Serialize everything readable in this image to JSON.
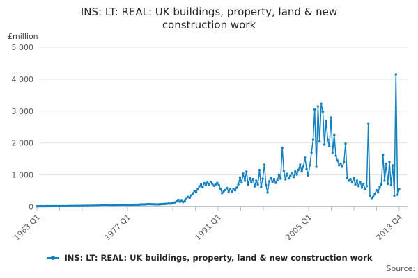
{
  "title": {
    "text": "INS: LT: REAL: UK buildings, property, land & new construction work"
  },
  "y_axis": {
    "unit": "£million",
    "ticks": [
      {
        "v": 5000,
        "label": "5 000"
      },
      {
        "v": 4000,
        "label": "4 000"
      },
      {
        "v": 3000,
        "label": "3 000"
      },
      {
        "v": 2000,
        "label": "2 000"
      },
      {
        "v": 1000,
        "label": "1 000"
      },
      {
        "v": 0,
        "label": "0"
      }
    ]
  },
  "x_axis": {
    "tick_count": 17,
    "major_ticks": [
      {
        "i": 0,
        "label": "1963 Q1"
      },
      {
        "i": 4,
        "label": "1977 Q1"
      },
      {
        "i": 8,
        "label": "1991 Q1"
      },
      {
        "i": 12,
        "label": "2005 Q1"
      },
      {
        "i": 16,
        "label": "2018 Q4"
      }
    ]
  },
  "legend": {
    "label": "INS: LT: REAL: UK buildings, property, land & new construction work"
  },
  "source": {
    "label": "Source:"
  },
  "colors": {
    "line": "#1380c0",
    "grid": "#e2e2e2",
    "axis": "#b4c3cf",
    "tick_text": "#595959"
  },
  "chart_data": {
    "type": "line",
    "title": "INS: LT: REAL: UK buildings, property, land & new construction work",
    "ylabel": "£million",
    "ylim": [
      0,
      5000
    ],
    "x_start": "1963 Q1",
    "x_end": "2018 Q4",
    "frequency": "quarterly",
    "grid": "horizontal",
    "legend_position": "bottom",
    "marker": "dot",
    "series_name": "INS: LT: REAL: UK buildings, property, land & new construction work",
    "values": [
      18,
      20,
      19,
      21,
      20,
      22,
      21,
      22,
      22,
      23,
      22,
      24,
      23,
      25,
      24,
      25,
      25,
      26,
      25,
      27,
      26,
      28,
      27,
      29,
      28,
      30,
      29,
      31,
      30,
      32,
      31,
      33,
      33,
      35,
      34,
      36,
      36,
      39,
      38,
      41,
      43,
      46,
      44,
      47,
      45,
      43,
      42,
      44,
      46,
      48,
      47,
      49,
      51,
      53,
      52,
      55,
      57,
      60,
      59,
      62,
      64,
      67,
      66,
      70,
      73,
      77,
      75,
      80,
      84,
      88,
      85,
      82,
      80,
      78,
      76,
      79,
      83,
      87,
      90,
      94,
      95,
      105,
      100,
      110,
      120,
      140,
      170,
      210,
      160,
      190,
      150,
      180,
      250,
      310,
      280,
      360,
      420,
      500,
      460,
      560,
      640,
      700,
      620,
      740,
      680,
      760,
      700,
      780,
      720,
      660,
      700,
      750,
      680,
      560,
      430,
      490,
      530,
      590,
      470,
      550,
      480,
      560,
      520,
      600,
      700,
      920,
      760,
      1040,
      820,
      1100,
      700,
      900,
      760,
      870,
      640,
      820,
      700,
      1150,
      620,
      880,
      1320,
      680,
      450,
      800,
      900,
      780,
      870,
      750,
      830,
      1000,
      880,
      1850,
      1120,
      860,
      1030,
      890,
      970,
      1060,
      930,
      1110,
      1010,
      1160,
      1320,
      1110,
      1260,
      1540,
      1180,
      980,
      1300,
      1700,
      2100,
      3050,
      1250,
      3150,
      2050,
      3230,
      2980,
      1950,
      2700,
      2100,
      1900,
      2800,
      1700,
      2250,
      1600,
      1450,
      1300,
      1350,
      1250,
      1400,
      1980,
      900,
      820,
      870,
      760,
      900,
      700,
      820,
      650,
      780,
      600,
      720,
      550,
      650,
      2600,
      350,
      250,
      320,
      400,
      520,
      450,
      620,
      700,
      1630,
      820,
      1350,
      720,
      1400,
      680,
      1300,
      350,
      4150,
      380,
      550
    ]
  }
}
